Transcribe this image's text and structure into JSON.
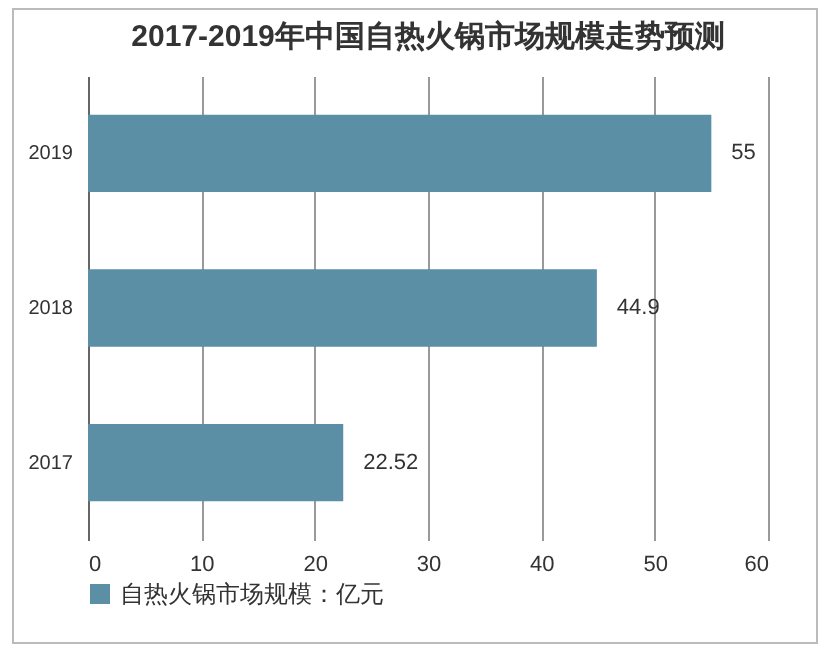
{
  "chart_data": {
    "type": "bar",
    "orientation": "horizontal",
    "title": "2017-2019年中国自热火锅市场规模走势预测",
    "categories": [
      "2019",
      "2018",
      "2017"
    ],
    "series": [
      {
        "name": "自热火锅市场规模：亿元",
        "color": "#5b8fa6",
        "values": [
          55,
          44.9,
          22.52
        ]
      }
    ],
    "xlim": [
      0,
      60
    ],
    "xticks": [
      0,
      10,
      20,
      30,
      40,
      50,
      60
    ],
    "grid": "x",
    "legend": "bottom",
    "data_labels": true
  }
}
